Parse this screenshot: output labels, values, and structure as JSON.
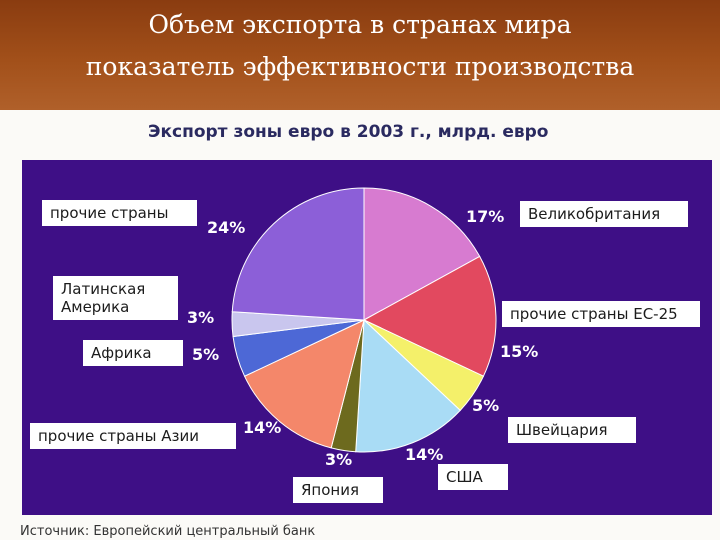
{
  "header": {
    "line1": "Объем экспорта в странах мира",
    "line2": "показатель эффективности производства"
  },
  "source": "Источник: Европейский центральный банк",
  "chart_data": {
    "type": "pie",
    "title": "Экспорт зоны евро в 2003 г., млрд. евро",
    "slices": [
      {
        "label": "Великобритания",
        "value": 17,
        "pct_label": "17%",
        "color": "#d77bd0"
      },
      {
        "label": "прочие страны ЕС-25",
        "value": 15,
        "pct_label": "15%",
        "color": "#e2495f"
      },
      {
        "label": "Швейцария",
        "value": 5,
        "pct_label": "5%",
        "color": "#f4f06a"
      },
      {
        "label": "США",
        "value": 14,
        "pct_label": "14%",
        "color": "#a9dcf5"
      },
      {
        "label": "Япония",
        "value": 3,
        "pct_label": "3%",
        "color": "#6d6a1e"
      },
      {
        "label": "прочие страны Азии",
        "value": 14,
        "pct_label": "14%",
        "color": "#f4876a"
      },
      {
        "label": "Африка",
        "value": 5,
        "pct_label": "5%",
        "color": "#4d68d6"
      },
      {
        "label": "Латинская Америка",
        "value": 3,
        "pct_label": "3%",
        "color": "#c9c6ee"
      },
      {
        "label": "прочие страны",
        "value": 24,
        "pct_label": "24%",
        "color": "#8c5fd8"
      }
    ]
  }
}
